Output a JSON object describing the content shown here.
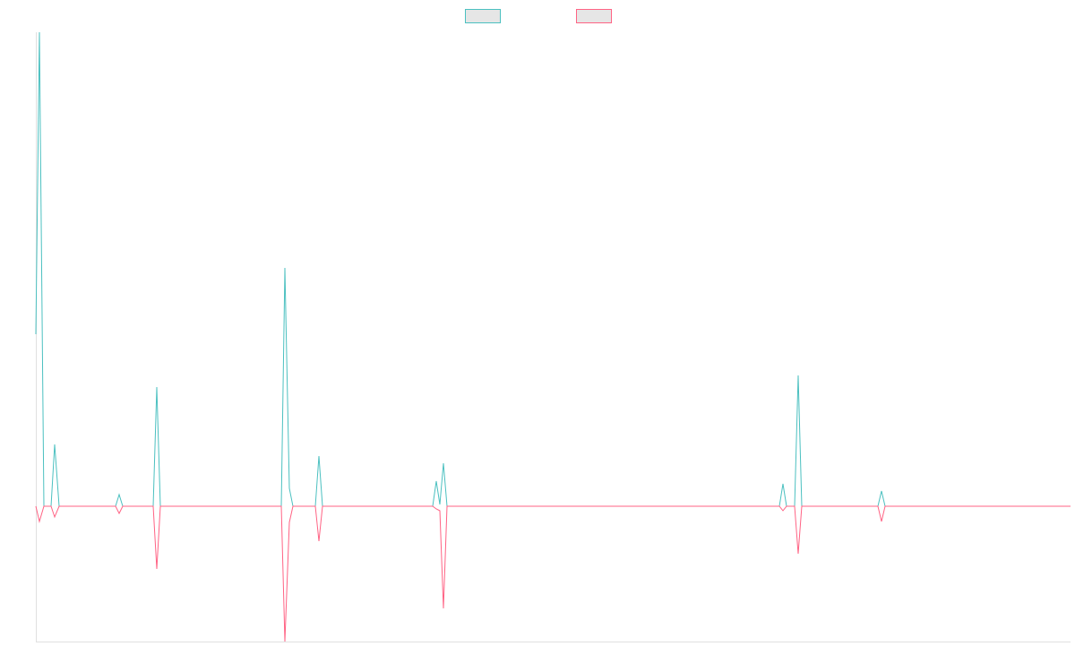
{
  "chart_data": {
    "type": "line",
    "x": [
      0,
      4,
      9,
      17,
      21,
      26,
      89,
      93,
      97,
      131,
      135,
      139,
      274,
      278,
      283,
      287,
      312,
      316,
      320,
      443,
      447,
      451,
      455,
      459,
      830,
      834,
      838,
      847,
      851,
      855,
      940,
      944,
      948,
      1155
    ],
    "series": [
      {
        "color": "#4bc0c0",
        "values": [
          192,
          529,
          0,
          0,
          69,
          0,
          0,
          13,
          0,
          0,
          133,
          0,
          0,
          266,
          20,
          0,
          0,
          56,
          0,
          0,
          28,
          2,
          48,
          0,
          0,
          25,
          0,
          0,
          146,
          0,
          0,
          17,
          0,
          0
        ]
      },
      {
        "color": "#ff6384",
        "values": [
          0,
          -17,
          0,
          0,
          -12,
          0,
          0,
          -8,
          0,
          0,
          -70,
          0,
          0,
          -151,
          -18,
          0,
          0,
          -39,
          0,
          0,
          -3,
          -5,
          -114,
          0,
          0,
          -5,
          0,
          0,
          -53,
          0,
          0,
          -17,
          0,
          0
        ]
      }
    ],
    "xlim": [
      0,
      1155
    ],
    "ylim": [
      -151,
      529
    ],
    "legend": "top"
  }
}
